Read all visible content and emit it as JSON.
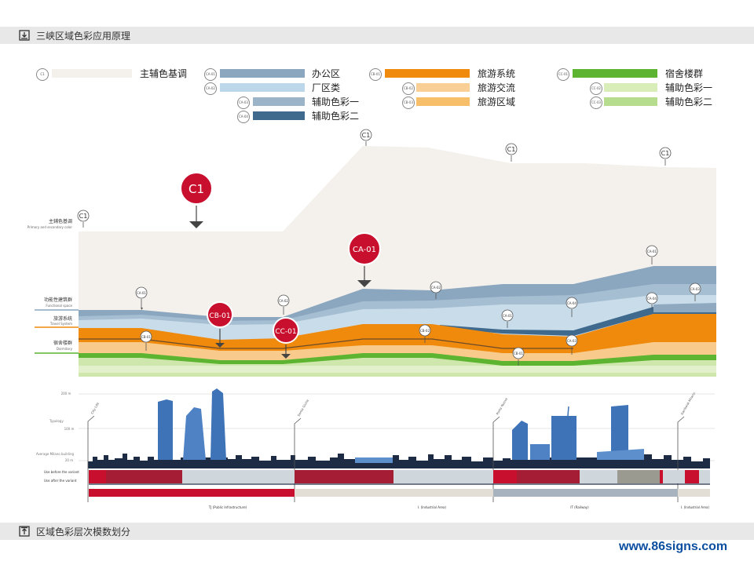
{
  "header": {
    "title": "三峡区域色彩应用原理",
    "icon": "download-tray-icon"
  },
  "footer": {
    "title": "区域色彩层次模数划分",
    "icon": "upload-tray-icon"
  },
  "watermark": "www.86signs.com",
  "legend": [
    {
      "code": "C1",
      "label": "主辅色基调",
      "color": "#f4f1ec"
    },
    {
      "code": "CA-01",
      "label": "办公区",
      "color": "#8ba6bf"
    },
    {
      "code": "CA-02",
      "label": "厂区类",
      "color": "#bcd6ea"
    },
    {
      "code": "CA-03",
      "label": "辅助色彩一",
      "color": "#9cb4c8"
    },
    {
      "code": "CA-04",
      "label": "辅助色彩二",
      "color": "#3f6a8e"
    },
    {
      "code": "CB-01",
      "label": "旅游系统",
      "color": "#ef8a0d"
    },
    {
      "code": "CB-02",
      "label": "旅游交流",
      "color": "#f9cf95"
    },
    {
      "code": "CB-03",
      "label": "旅游区域",
      "color": "#f8bf6a"
    },
    {
      "code": "CC-01",
      "label": "宿舍楼群",
      "color": "#5cb431"
    },
    {
      "code": "CC-02",
      "label": "辅助色彩一",
      "color": "#d9edb8"
    },
    {
      "code": "CC-03",
      "label": "辅助色彩二",
      "color": "#b6dc8e"
    }
  ],
  "left_labels": [
    {
      "cn": "主辅色基调",
      "en": "Primary and secondary color"
    },
    {
      "cn": "功能性建筑群",
      "en": "Functional space"
    },
    {
      "cn": "旅游系统",
      "en": "Travel System"
    },
    {
      "cn": "宿舍楼群",
      "en": "Dormitory"
    }
  ],
  "big_markers": [
    "C1",
    "CA-01",
    "CB-01",
    "CC-01"
  ],
  "small_markers": [
    "C1",
    "C1",
    "C1",
    "C1",
    "CA-01",
    "CA-02",
    "CB-01",
    "CA-02",
    "CA-01",
    "CA-04",
    "CA-03",
    "CA-01",
    "CA-04",
    "CA-03",
    "CB-02",
    "CB-01",
    "CC-01"
  ],
  "skyline": {
    "tick_labels": [
      "200 m",
      "Typology",
      "100 m",
      "Average Milano building",
      "20 m"
    ],
    "poles": [
      "City Life",
      "Santa Giulia",
      "Porta Nuova",
      "Garibaldi Milano"
    ],
    "rows": [
      "Use before the variant",
      "Use after the variant"
    ],
    "zones": [
      "TJ (Public Infrastructure)",
      "I. (Industrial Area)",
      "IT (Railway)",
      "I. (Industrial Area)"
    ]
  },
  "colors": {
    "beige": "#f4f1ec",
    "blue_dark": "#7f9ab2",
    "blue_mid": "#a6bed2",
    "blue_light": "#c9dcea",
    "orange": "#ef8a0d",
    "orange_light": "#f8cb8c",
    "green": "#5cb431",
    "green_light": "#cfe7ad",
    "red": "#c8102e",
    "crimson": "#a51d34",
    "navy": "#1d2b45",
    "tower_blue": "#3f73b8"
  }
}
